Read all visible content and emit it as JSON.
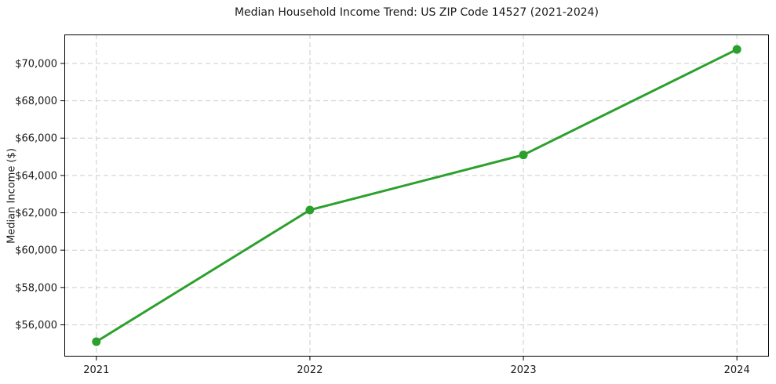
{
  "figure": {
    "title": "Median Household Income Trend: US ZIP Code 14527 (2021-2024)",
    "ylabel": "Median Income ($)",
    "xlabel": ""
  },
  "chart_data": {
    "type": "line",
    "title": "Median Household Income Trend: US ZIP Code 14527 (2021-2024)",
    "xlabel": "",
    "ylabel": "Median Income ($)",
    "x": [
      2021,
      2022,
      2023,
      2024
    ],
    "series": [
      {
        "name": "Median Household Income",
        "values": [
          55100,
          62150,
          65100,
          70750
        ]
      }
    ],
    "xticks": [
      {
        "value": 2021,
        "label": "2021"
      },
      {
        "value": 2022,
        "label": "2022"
      },
      {
        "value": 2023,
        "label": "2023"
      },
      {
        "value": 2024,
        "label": "2024"
      }
    ],
    "yticks": [
      {
        "value": 56000,
        "label": "$56,000"
      },
      {
        "value": 58000,
        "label": "$58,000"
      },
      {
        "value": 60000,
        "label": "$60,000"
      },
      {
        "value": 62000,
        "label": "$62,000"
      },
      {
        "value": 64000,
        "label": "$64,000"
      },
      {
        "value": 66000,
        "label": "$66,000"
      },
      {
        "value": 68000,
        "label": "$68,000"
      },
      {
        "value": 70000,
        "label": "$70,000"
      }
    ],
    "xlim": [
      2020.85,
      2024.15
    ],
    "ylim": [
      54300,
      71550
    ],
    "grid": true,
    "grid_style": "dashed",
    "legend": false,
    "colors": {
      "line": "#2ca02c",
      "marker": "#2ca02c",
      "grid": "#cccccc",
      "spine": "#000000",
      "text": "#1a1a1a",
      "background": "#ffffff"
    }
  }
}
